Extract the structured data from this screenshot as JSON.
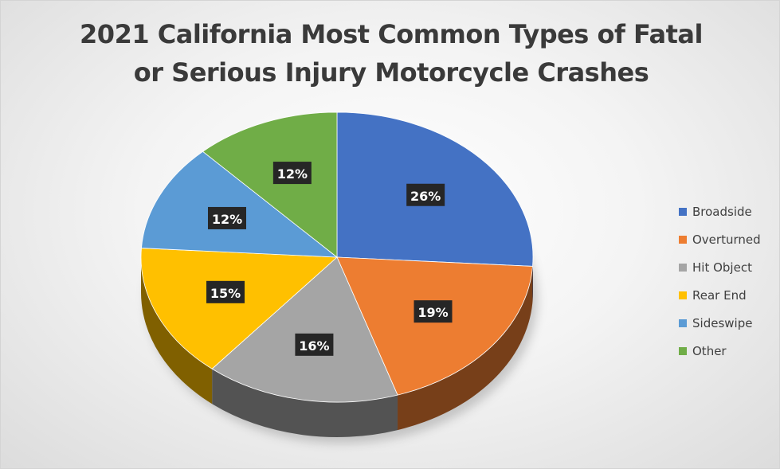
{
  "chart_data": {
    "type": "pie",
    "title": "2021 California Most Common Types of Fatal or Serious Injury Motorcycle Crashes",
    "categories": [
      "Broadside",
      "Overturned",
      "Hit Object",
      "Rear End",
      "Sideswipe",
      "Other"
    ],
    "values": [
      26,
      19,
      16,
      15,
      12,
      12
    ],
    "data_labels": [
      "26%",
      "19%",
      "16%",
      "15%",
      "12%",
      "12%"
    ],
    "colors": [
      "#4472C4",
      "#ED7D31",
      "#A5A5A5",
      "#FFC000",
      "#5B9BD5",
      "#70AD47"
    ],
    "legend_position": "right",
    "style": "3d"
  }
}
